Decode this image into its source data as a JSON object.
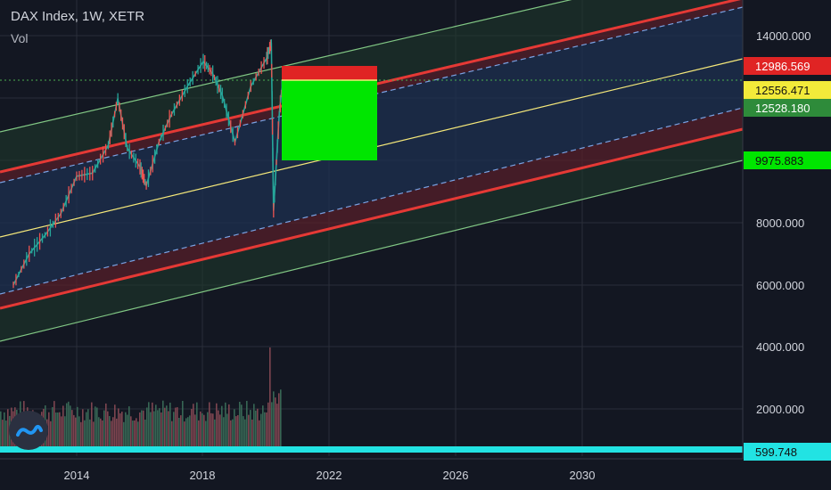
{
  "header": {
    "symbol_line": "DAX Index, 1W, XETR",
    "indicator": "Vol"
  },
  "colors": {
    "background": "#131722",
    "grid": "#2a2e39",
    "axis_text": "#d1d4dc",
    "channel_fill_inner": "#1e3050",
    "channel_fill_outer": "#1f3a2c",
    "red_band": "#e53935",
    "green_line": "#81c784",
    "yellow_line": "#f5e87a",
    "dashed_line": "#7aa2e3",
    "target_box": "#00e600",
    "stop_box": "#e02424",
    "volume_bar": "#8a4a55",
    "volume_baseline": "#22e3e3"
  },
  "chart_data": {
    "type": "line",
    "title": "DAX Index, 1W, XETR",
    "x_ticks": [
      "2014",
      "2018",
      "2022",
      "2026",
      "2030"
    ],
    "y_ticks": [
      "2000.000",
      "4000.000",
      "6000.000",
      "8000.000",
      "14000.000"
    ],
    "price_labels": [
      {
        "value": "12986.569",
        "color": "#e02424",
        "text_color": "#ffffff"
      },
      {
        "value": "12556.471",
        "color": "#f2ea3a",
        "text_color": "#111111"
      },
      {
        "value": "12528.180",
        "color": "#2e8b3a",
        "text_color": "#ffffff"
      },
      {
        "value": "9975.883",
        "color": "#00e600",
        "text_color": "#111111"
      },
      {
        "value": "599.748",
        "color": "#22e3e3",
        "text_color": "#111111"
      }
    ],
    "series": [
      {
        "type": "candlestick_approx",
        "x": [
          2012.0,
          2012.5,
          2013.0,
          2013.5,
          2014.0,
          2014.5,
          2015.0,
          2015.3,
          2015.6,
          2016.0,
          2016.2,
          2016.6,
          2017.0,
          2017.5,
          2018.0,
          2018.3,
          2018.6,
          2019.0,
          2019.5,
          2020.0,
          2020.15,
          2020.22,
          2020.4,
          2020.5
        ],
        "values": [
          6000,
          7000,
          7600,
          8300,
          9500,
          9600,
          10500,
          12000,
          10400,
          9800,
          9200,
          10600,
          11500,
          12400,
          13200,
          12800,
          12100,
          10600,
          12400,
          13300,
          13800,
          8400,
          11500,
          12500
        ]
      }
    ],
    "volume": {
      "approx_range": [
        1500,
        4300
      ],
      "last_value": "599.748"
    },
    "channel": {
      "lines": [
        "upper-green",
        "upper-red",
        "upper-dashed",
        "middle-yellow",
        "lower-dashed",
        "lower-red",
        "lower-green"
      ]
    },
    "trade_box": {
      "entry": 12556.471,
      "stop": 12986.569,
      "target": 9975.883
    },
    "grid": true
  }
}
